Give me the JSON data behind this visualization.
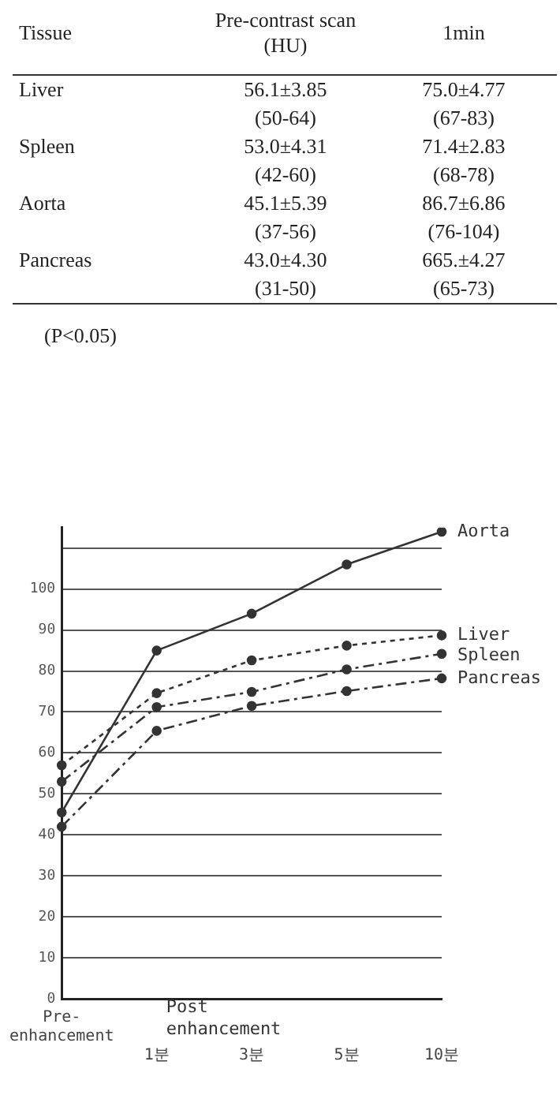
{
  "chart_data": [
    {
      "type": "other",
      "annotations": [
        "Tissue",
        "Pre-contrast scan (HU)",
        "1min",
        "Liver",
        "56.1±3.85",
        "75.0±4.77",
        "(50-64)",
        "(67-83)",
        "Spleen",
        "53.0±4.31",
        "71.4±2.83",
        "(42-60)",
        "(68-78)",
        "Aorta",
        "45.1±5.39",
        "86.7±6.86",
        "(37-56)",
        "(76-104)",
        "Pancreas",
        "43.0±4.30",
        "665.±4.27",
        "(31-50)",
        "(65-73)",
        "(P<0.05)"
      ]
    },
    {
      "type": "line",
      "categories": [
        "Pre-enhancement",
        "1분",
        "3분",
        "5분",
        "10분"
      ],
      "xlabel": "Post enhancement",
      "series": [
        {
          "name": "Aorta",
          "color": "#333333",
          "line_style": "solid",
          "values": [
            45.5,
            85,
            94,
            106,
            114
          ]
        },
        {
          "name": "Liver",
          "color": "#333333",
          "line_style": "dotted",
          "values": [
            57,
            74.6,
            82.6,
            86.2,
            88.7
          ]
        },
        {
          "name": "Spleen",
          "color": "#333333",
          "line_style": "dashed",
          "values": [
            53,
            71.2,
            74.9,
            80.4,
            84.2
          ]
        },
        {
          "name": "Pancreas",
          "color": "#333333",
          "line_style": "dashed",
          "values": [
            42,
            65.4,
            71.5,
            75.1,
            78.2
          ]
        }
      ],
      "ylim": [
        0,
        115
      ],
      "yticks": [
        0,
        10,
        20,
        30,
        40,
        50,
        60,
        70,
        80,
        90,
        100,
        {
          "value": 110,
          "label": null
        }
      ],
      "grid": "y",
      "legend": false,
      "marker": "circle"
    }
  ]
}
